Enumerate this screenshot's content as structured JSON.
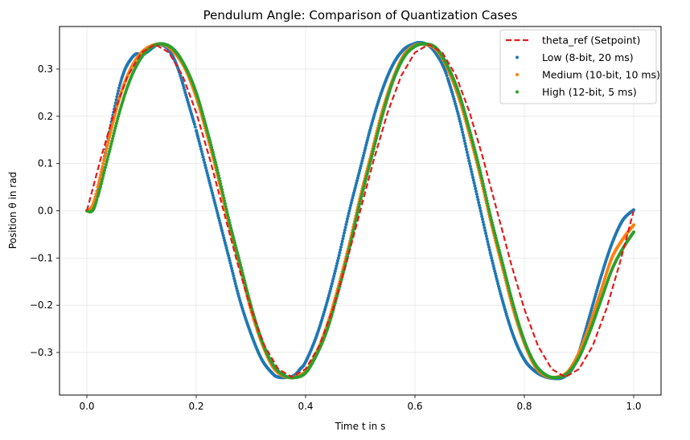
{
  "chart_data": {
    "type": "line",
    "title": "Pendulum Angle: Comparison of Quantization Cases",
    "xlabel": "Time t in s",
    "ylabel": "Position θ in rad",
    "xlim": [
      -0.05,
      1.05
    ],
    "ylim": [
      -0.39,
      0.39
    ],
    "xticks": [
      0.0,
      0.2,
      0.4,
      0.6,
      0.8,
      1.0
    ],
    "xtick_labels": [
      "0.0",
      "0.2",
      "0.4",
      "0.6",
      "0.8",
      "1.0"
    ],
    "yticks": [
      -0.3,
      -0.2,
      -0.1,
      0.0,
      0.1,
      0.2,
      0.3
    ],
    "ytick_labels": [
      "−0.3",
      "−0.2",
      "−0.1",
      "0.0",
      "0.1",
      "0.2",
      "0.3"
    ],
    "grid": true,
    "legend_position": "top-right",
    "series": [
      {
        "name": "theta_ref (Setpoint)",
        "style": "dashed-line",
        "color": "#e41a1c",
        "x": [
          0.0,
          0.025,
          0.05,
          0.075,
          0.1,
          0.125,
          0.15,
          0.175,
          0.2,
          0.225,
          0.25,
          0.275,
          0.3,
          0.325,
          0.35,
          0.375,
          0.4,
          0.425,
          0.45,
          0.475,
          0.5,
          0.525,
          0.55,
          0.575,
          0.6,
          0.625,
          0.65,
          0.675,
          0.7,
          0.725,
          0.75,
          0.775,
          0.8,
          0.825,
          0.85,
          0.875,
          0.9,
          0.925,
          0.95,
          0.975,
          1.0
        ],
        "y": [
          0.0,
          0.109,
          0.208,
          0.286,
          0.335,
          0.352,
          0.335,
          0.286,
          0.208,
          0.109,
          0.0,
          -0.109,
          -0.208,
          -0.286,
          -0.335,
          -0.352,
          -0.335,
          -0.286,
          -0.208,
          -0.109,
          0.0,
          0.109,
          0.208,
          0.286,
          0.335,
          0.352,
          0.335,
          0.286,
          0.208,
          0.109,
          0.0,
          -0.109,
          -0.208,
          -0.286,
          -0.335,
          -0.352,
          -0.335,
          -0.286,
          -0.208,
          -0.109,
          0.0
        ]
      },
      {
        "name": "Low (8-bit, 20 ms)",
        "style": "markers",
        "color": "#1f77b4",
        "x": [
          0.0,
          0.005,
          0.01,
          0.02,
          0.03,
          0.04,
          0.05,
          0.06,
          0.07,
          0.08,
          0.09,
          0.1,
          0.11,
          0.12,
          0.13,
          0.14,
          0.15,
          0.16,
          0.17,
          0.18,
          0.19,
          0.2,
          0.22,
          0.24,
          0.26,
          0.28,
          0.3,
          0.32,
          0.34,
          0.35,
          0.36,
          0.37,
          0.38,
          0.39,
          0.4,
          0.42,
          0.44,
          0.46,
          0.48,
          0.5,
          0.52,
          0.54,
          0.56,
          0.58,
          0.6,
          0.61,
          0.62,
          0.63,
          0.64,
          0.65,
          0.66,
          0.68,
          0.7,
          0.72,
          0.74,
          0.76,
          0.78,
          0.8,
          0.82,
          0.84,
          0.86,
          0.87,
          0.88,
          0.89,
          0.9,
          0.92,
          0.94,
          0.96,
          0.98,
          1.0
        ],
        "y": [
          0.0,
          0.0,
          0.005,
          0.04,
          0.1,
          0.16,
          0.215,
          0.265,
          0.3,
          0.32,
          0.332,
          0.33,
          0.336,
          0.345,
          0.352,
          0.35,
          0.34,
          0.32,
          0.29,
          0.25,
          0.21,
          0.17,
          0.08,
          -0.01,
          -0.1,
          -0.19,
          -0.26,
          -0.315,
          -0.345,
          -0.352,
          -0.353,
          -0.352,
          -0.348,
          -0.335,
          -0.32,
          -0.265,
          -0.19,
          -0.1,
          0.0,
          0.09,
          0.18,
          0.255,
          0.31,
          0.342,
          0.354,
          0.356,
          0.353,
          0.345,
          0.33,
          0.31,
          0.28,
          0.2,
          0.1,
          0.0,
          -0.1,
          -0.19,
          -0.265,
          -0.315,
          -0.34,
          -0.352,
          -0.355,
          -0.353,
          -0.345,
          -0.33,
          -0.3,
          -0.22,
          -0.14,
          -0.07,
          -0.02,
          0.002
        ]
      },
      {
        "name": "Medium (10-bit, 10 ms)",
        "style": "markers",
        "color": "#ff7f0e",
        "x": [
          0.0,
          0.01,
          0.02,
          0.04,
          0.06,
          0.08,
          0.1,
          0.12,
          0.14,
          0.16,
          0.18,
          0.2,
          0.22,
          0.24,
          0.26,
          0.28,
          0.3,
          0.32,
          0.34,
          0.36,
          0.38,
          0.4,
          0.42,
          0.44,
          0.46,
          0.48,
          0.5,
          0.52,
          0.54,
          0.56,
          0.58,
          0.6,
          0.62,
          0.64,
          0.66,
          0.68,
          0.7,
          0.72,
          0.74,
          0.76,
          0.78,
          0.8,
          0.82,
          0.84,
          0.86,
          0.88,
          0.9,
          0.92,
          0.94,
          0.96,
          0.98,
          1.0
        ],
        "y": [
          0.0,
          0.01,
          0.05,
          0.15,
          0.24,
          0.3,
          0.335,
          0.35,
          0.352,
          0.335,
          0.3,
          0.24,
          0.16,
          0.07,
          -0.03,
          -0.12,
          -0.21,
          -0.28,
          -0.33,
          -0.35,
          -0.352,
          -0.34,
          -0.3,
          -0.24,
          -0.16,
          -0.07,
          0.03,
          0.12,
          0.21,
          0.28,
          0.33,
          0.35,
          0.352,
          0.34,
          0.3,
          0.24,
          0.16,
          0.07,
          -0.03,
          -0.12,
          -0.21,
          -0.28,
          -0.33,
          -0.35,
          -0.352,
          -0.34,
          -0.3,
          -0.24,
          -0.17,
          -0.1,
          -0.06,
          -0.03
        ]
      },
      {
        "name": "High (12-bit, 5 ms)",
        "style": "markers",
        "color": "#2ca02c",
        "x": [
          0.0,
          0.01,
          0.02,
          0.04,
          0.06,
          0.08,
          0.1,
          0.12,
          0.14,
          0.16,
          0.18,
          0.2,
          0.22,
          0.24,
          0.26,
          0.28,
          0.3,
          0.32,
          0.34,
          0.36,
          0.38,
          0.4,
          0.42,
          0.44,
          0.46,
          0.48,
          0.5,
          0.52,
          0.54,
          0.56,
          0.58,
          0.6,
          0.62,
          0.64,
          0.66,
          0.68,
          0.7,
          0.72,
          0.74,
          0.76,
          0.78,
          0.8,
          0.82,
          0.84,
          0.86,
          0.88,
          0.9,
          0.92,
          0.94,
          0.96,
          0.98,
          1.0
        ],
        "y": [
          0.0,
          0.0,
          0.03,
          0.12,
          0.21,
          0.28,
          0.325,
          0.348,
          0.353,
          0.34,
          0.305,
          0.25,
          0.17,
          0.08,
          -0.02,
          -0.11,
          -0.2,
          -0.275,
          -0.325,
          -0.348,
          -0.353,
          -0.343,
          -0.305,
          -0.25,
          -0.17,
          -0.08,
          0.02,
          0.11,
          0.2,
          0.275,
          0.325,
          0.348,
          0.353,
          0.343,
          0.305,
          0.25,
          0.17,
          0.08,
          -0.02,
          -0.11,
          -0.2,
          -0.275,
          -0.325,
          -0.348,
          -0.353,
          -0.343,
          -0.31,
          -0.255,
          -0.19,
          -0.125,
          -0.08,
          -0.045
        ]
      }
    ]
  }
}
